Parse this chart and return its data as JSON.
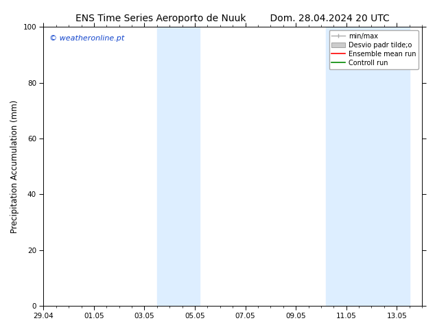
{
  "title_left": "ENS Time Series Aeroporto de Nuuk",
  "title_right": "Dom. 28.04.2024 20 UTC",
  "ylabel": "Precipitation Accumulation (mm)",
  "watermark": "© weatheronline.pt",
  "watermark_color": "#1144cc",
  "ylim": [
    0,
    100
  ],
  "yticks": [
    0,
    20,
    40,
    60,
    80,
    100
  ],
  "xlim": [
    0,
    15
  ],
  "xtick_labels": [
    "29.04",
    "01.05",
    "03.05",
    "05.05",
    "07.05",
    "09.05",
    "11.05",
    "13.05"
  ],
  "xtick_positions_days": [
    0,
    2,
    4,
    6,
    8,
    10,
    12,
    14
  ],
  "shaded_bands": [
    {
      "start_days": 4.5,
      "end_days": 6.2
    },
    {
      "start_days": 11.2,
      "end_days": 14.5
    }
  ],
  "shaded_color": "#ddeeff",
  "legend_entries": [
    {
      "label": "min/max",
      "color": "#aaaaaa",
      "type": "errorbar"
    },
    {
      "label": "Desvio padr tilde;o",
      "color": "#cccccc",
      "type": "bar"
    },
    {
      "label": "Ensemble mean run",
      "color": "#ff0000",
      "type": "line"
    },
    {
      "label": "Controll run",
      "color": "#008800",
      "type": "line"
    }
  ],
  "bg_color": "#ffffff",
  "plot_bg_color": "#ffffff",
  "tick_label_fontsize": 7.5,
  "title_fontsize": 10,
  "ylabel_fontsize": 8.5,
  "watermark_fontsize": 8,
  "legend_fontsize": 7
}
